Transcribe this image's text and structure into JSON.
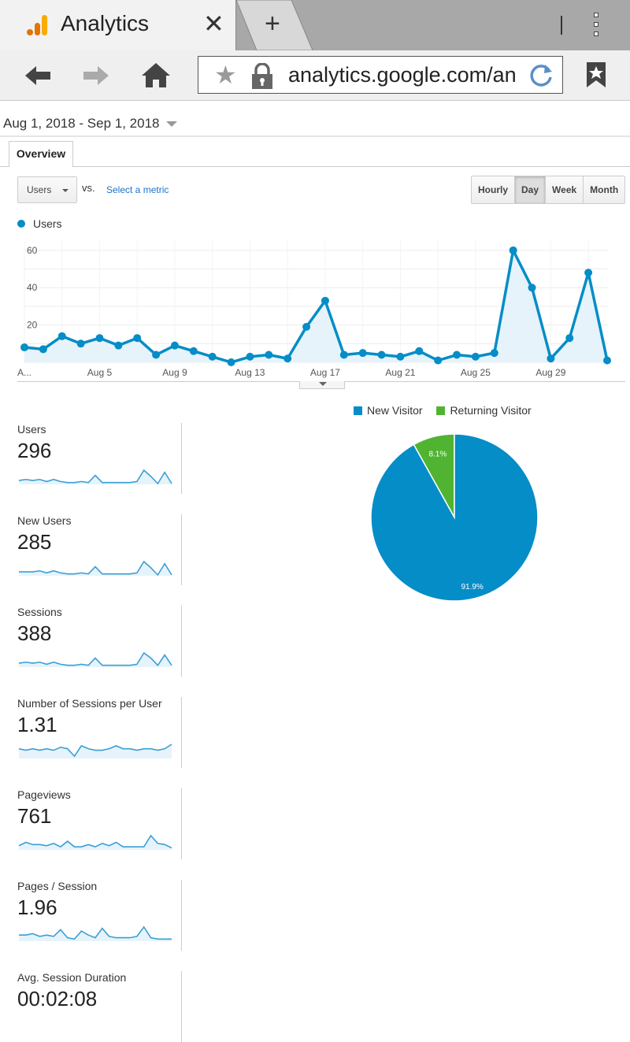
{
  "browser": {
    "tab_title": "Analytics",
    "close_glyph": "✕",
    "new_tab_glyph": "+",
    "url": "analytics.google.com/an"
  },
  "page": {
    "date_range": "Aug 1, 2018 - Sep 1, 2018",
    "overview_tab": "Overview",
    "metric_select": "Users",
    "vs_label": "vs.",
    "select_metric_link": "Select a metric",
    "granularity": [
      "Hourly",
      "Day",
      "Week",
      "Month"
    ],
    "granularity_active": "Day",
    "legend_label": "Users"
  },
  "colors": {
    "primary": "#058dc7",
    "area_fill": "#e6f3fa",
    "secondary": "#50b432"
  },
  "chart_data": [
    {
      "type": "line",
      "series": [
        {
          "name": "Users",
          "values": [
            8,
            7,
            14,
            10,
            13,
            9,
            13,
            4,
            9,
            6,
            3,
            0,
            3,
            4,
            2,
            19,
            33,
            4,
            5,
            4,
            3,
            6,
            1,
            4,
            3,
            5,
            60,
            40,
            2,
            13,
            48,
            1
          ]
        }
      ],
      "x_tick_labels": [
        "A...",
        "Aug 5",
        "Aug 9",
        "Aug 13",
        "Aug 17",
        "Aug 21",
        "Aug 25",
        "Aug 29"
      ],
      "y_tick_labels": [
        "20",
        "40",
        "60"
      ],
      "ylim": [
        0,
        65
      ],
      "area": true
    },
    {
      "type": "pie",
      "labels": [
        "New Visitor",
        "Returning Visitor"
      ],
      "values": [
        91.9,
        8.1
      ],
      "value_labels": [
        "91.9%",
        "8.1%"
      ],
      "legend_position": "top"
    }
  ],
  "scorecards": [
    {
      "label": "Users",
      "value": "296",
      "spark": [
        3,
        4,
        3,
        4,
        2,
        4,
        2,
        1,
        1,
        2,
        1,
        8,
        1,
        1,
        1,
        1,
        1,
        2,
        13,
        7,
        0,
        11,
        0
      ]
    },
    {
      "label": "New Users",
      "value": "285",
      "spark": [
        3,
        3,
        3,
        4,
        2,
        4,
        2,
        1,
        1,
        2,
        1,
        8,
        1,
        1,
        1,
        1,
        1,
        2,
        13,
        7,
        0,
        11,
        0
      ]
    },
    {
      "label": "Sessions",
      "value": "388",
      "spark": [
        3,
        4,
        3,
        4,
        2,
        4,
        2,
        1,
        1,
        2,
        1,
        8,
        1,
        1,
        1,
        1,
        1,
        2,
        13,
        8,
        1,
        11,
        1
      ]
    },
    {
      "label": "Number of Sessions per User",
      "value": "1.31",
      "spark": [
        6,
        5,
        6,
        5,
        6,
        5,
        7,
        6,
        1,
        8,
        6,
        5,
        5,
        6,
        8,
        6,
        6,
        5,
        6,
        6,
        5,
        6,
        9
      ]
    },
    {
      "label": "Pageviews",
      "value": "761",
      "spark": [
        3,
        6,
        4,
        4,
        3,
        5,
        2,
        7,
        2,
        2,
        4,
        2,
        5,
        3,
        6,
        2,
        2,
        2,
        2,
        12,
        5,
        4,
        1
      ]
    },
    {
      "label": "Pages / Session",
      "value": "1.96",
      "spark": [
        4,
        4,
        5,
        3,
        4,
        3,
        8,
        2,
        1,
        7,
        4,
        2,
        9,
        3,
        2,
        2,
        2,
        3,
        10,
        2,
        1,
        1,
        1
      ]
    },
    {
      "label": "Avg. Session Duration",
      "value": "00:02:08",
      "spark": []
    }
  ]
}
